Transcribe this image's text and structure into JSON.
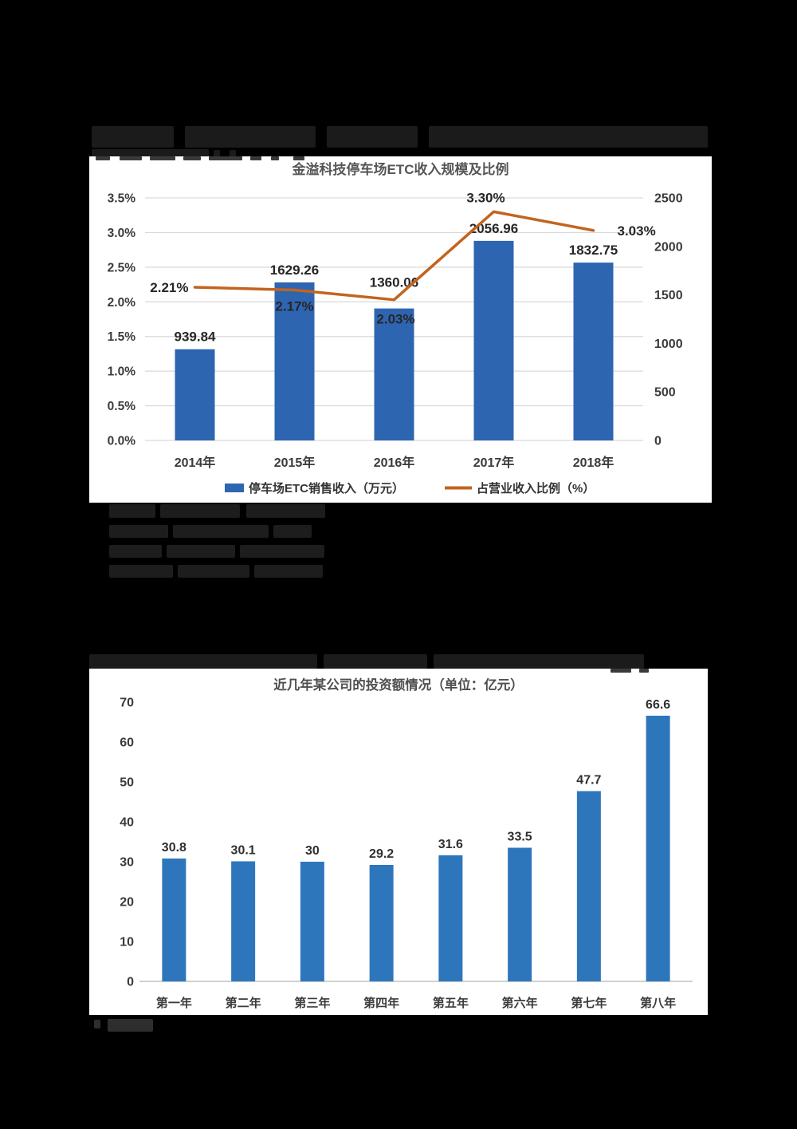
{
  "page": {
    "background": "#000000",
    "panel_background": "#ffffff",
    "redacted_regions": [
      "question-1-heading (blurred, illegible)",
      "question-1-options-4-lines (blurred, illegible)",
      "question-2-heading (blurred, illegible)",
      "answer-footnote (blurred, illegible)"
    ]
  },
  "chart_data": [
    {
      "type": "bar",
      "subtype": "combo-bar-line-dual-axis",
      "title": "金溢科技停车场ETC收入规模及比例",
      "categories": [
        "2014年",
        "2015年",
        "2016年",
        "2017年",
        "2018年"
      ],
      "series": [
        {
          "name": "停车场ETC销售收入（万元）",
          "type": "bar",
          "axis": "right",
          "color": "#2e65b1",
          "values": [
            939.84,
            1629.26,
            1360.06,
            2056.96,
            1832.75
          ],
          "labels": [
            "939.84",
            "1629.26",
            "1360.06",
            "2056.96",
            "1832.75"
          ]
        },
        {
          "name": "占营业收入比例（%）",
          "type": "line",
          "axis": "left",
          "color": "#c2641f",
          "values": [
            2.21,
            2.17,
            2.03,
            3.3,
            3.03
          ],
          "labels": [
            "2.21%",
            "2.17%",
            "2.03%",
            "3.30%",
            "3.03%"
          ]
        }
      ],
      "left_axis": {
        "min": 0,
        "max": 3.5,
        "ticks": [
          "3.5%",
          "3.0%",
          "2.5%",
          "2.0%",
          "1.5%",
          "1.0%",
          "0.5%",
          "0.0%"
        ]
      },
      "right_axis": {
        "min": 0,
        "max": 2500,
        "ticks": [
          "2500",
          "2000",
          "1500",
          "1000",
          "500",
          "0"
        ]
      },
      "grid": true,
      "legend_position": "bottom",
      "text_color": "#3b3b3b",
      "grid_color": "#d9d9d9"
    },
    {
      "type": "bar",
      "title": "近几年某公司的投资额情况（单位：亿元）",
      "categories": [
        "第一年",
        "第二年",
        "第三年",
        "第四年",
        "第五年",
        "第六年",
        "第七年",
        "第八年"
      ],
      "values": [
        30.8,
        30.1,
        30,
        29.2,
        31.6,
        33.5,
        47.7,
        66.6
      ],
      "labels": [
        "30.8",
        "30.1",
        "30",
        "29.2",
        "31.6",
        "33.5",
        "47.7",
        "66.6"
      ],
      "color": "#2e76bc",
      "y_axis": {
        "min": 0,
        "max": 70,
        "ticks": [
          "70",
          "60",
          "50",
          "40",
          "30",
          "20",
          "10",
          "0"
        ]
      },
      "grid": false,
      "ylabel": "",
      "xlabel": "",
      "text_color": "#3b3b3b",
      "axis_line_color": "#c0c0c0"
    }
  ]
}
